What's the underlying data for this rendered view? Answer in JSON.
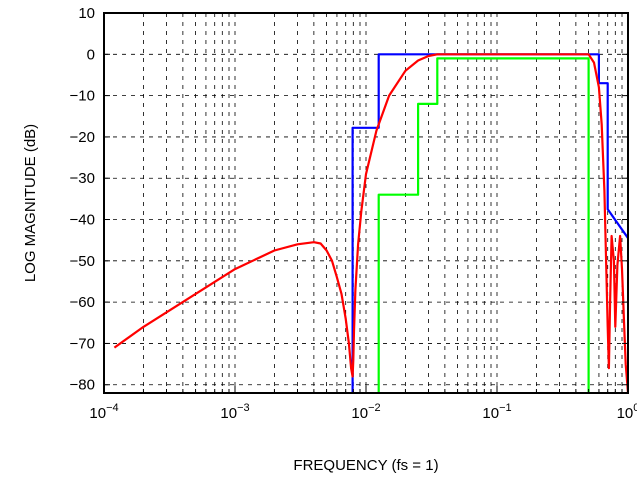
{
  "chart_data": {
    "type": "line",
    "title": "",
    "xlabel": "FREQUENCY (fs = 1)",
    "ylabel": "LOG MAGNITUDE (dB)",
    "xscale": "log",
    "xlim": [
      0.0001,
      1
    ],
    "ylim": [
      -82,
      10
    ],
    "grid": true,
    "grid_style": "dashed",
    "legend": "none",
    "x_ticks": [
      {
        "base": "10",
        "exp": "−4",
        "value": 0.0001
      },
      {
        "base": "10",
        "exp": "−3",
        "value": 0.001
      },
      {
        "base": "10",
        "exp": "−2",
        "value": 0.01
      },
      {
        "base": "10",
        "exp": "−1",
        "value": 0.1
      },
      {
        "base": "10",
        "exp": "0",
        "value": 1
      }
    ],
    "y_ticks": [
      {
        "label": "10",
        "value": 10
      },
      {
        "label": "0",
        "value": 0
      },
      {
        "label": "−10",
        "value": -10
      },
      {
        "label": "−20",
        "value": -20
      },
      {
        "label": "−30",
        "value": -30
      },
      {
        "label": "−40",
        "value": -40
      },
      {
        "label": "−50",
        "value": -50
      },
      {
        "label": "−60",
        "value": -60
      },
      {
        "label": "−70",
        "value": -70
      },
      {
        "label": "−80",
        "value": -80
      }
    ],
    "series": [
      {
        "color": "#0000ff",
        "x": [
          0.0079,
          0.0079,
          0.0125,
          0.0125,
          0.6,
          0.6,
          0.7,
          0.7,
          1.0
        ],
        "y": [
          -82,
          -17.8,
          -17.8,
          0,
          0,
          -7,
          -7,
          -37.5,
          -44.5
        ]
      },
      {
        "color": "#00ff00",
        "x": [
          0.0125,
          0.0125,
          0.025,
          0.025,
          0.035,
          0.035,
          0.5,
          0.5
        ],
        "y": [
          -82,
          -34,
          -34,
          -12,
          -12,
          -1,
          -1,
          -82
        ]
      },
      {
        "color": "#ff0000",
        "x": [
          0.00012,
          0.0002,
          0.0005,
          0.001,
          0.002,
          0.003,
          0.004,
          0.0045,
          0.005,
          0.0055,
          0.006,
          0.0065,
          0.007,
          0.0074,
          0.0077,
          0.0079,
          0.008,
          0.0081,
          0.0083,
          0.0087,
          0.0092,
          0.01,
          0.012,
          0.015,
          0.02,
          0.025,
          0.03,
          0.035,
          0.04,
          0.1,
          0.3,
          0.5,
          0.55,
          0.6,
          0.63,
          0.66,
          0.68,
          0.7,
          0.715,
          0.73,
          0.75,
          0.78,
          0.8,
          0.83,
          0.87,
          0.9,
          0.93,
          0.96,
          1.0
        ],
        "y": [
          -71,
          -66,
          -58,
          -52,
          -47.5,
          -46,
          -45.5,
          -45.8,
          -47.5,
          -50,
          -54,
          -58,
          -64,
          -70,
          -76,
          -78,
          -74,
          -67,
          -57,
          -46,
          -38,
          -29,
          -18.5,
          -10,
          -4,
          -1.5,
          -0.4,
          0,
          0,
          0,
          0,
          0,
          -2,
          -8,
          -17,
          -33,
          -50,
          -66,
          -76,
          -60,
          -44,
          -50,
          -66,
          -51,
          -44,
          -52,
          -64,
          -75,
          -82
        ]
      }
    ]
  }
}
